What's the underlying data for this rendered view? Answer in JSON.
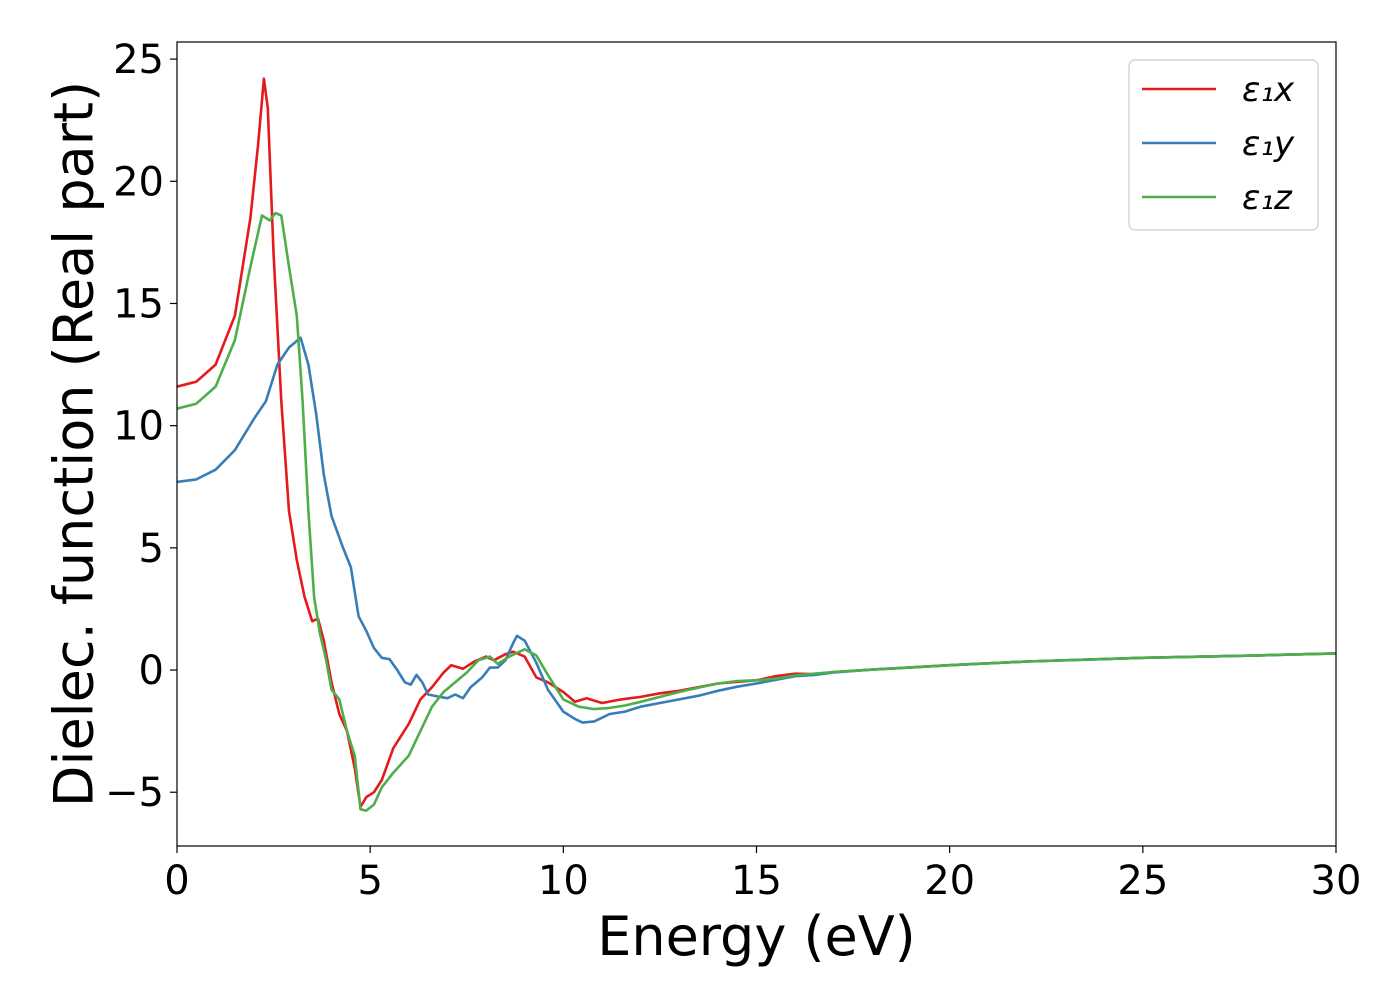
{
  "chart_data": {
    "type": "line",
    "xlabel": "Energy (eV)",
    "ylabel": "Dielec. function (Real part)",
    "xlim": [
      0,
      30
    ],
    "ylim": [
      -7.2,
      25.7
    ],
    "xticks": [
      0,
      5,
      10,
      15,
      20,
      25,
      30
    ],
    "xtick_labels": [
      "0",
      "5",
      "10",
      "15",
      "20",
      "25",
      "30"
    ],
    "yticks": [
      -5,
      0,
      5,
      10,
      15,
      20,
      25
    ],
    "ytick_labels": [
      "−5",
      "0",
      "5",
      "10",
      "15",
      "20",
      "25"
    ],
    "grid": false,
    "legend_position": "top-right",
    "series": [
      {
        "name": "ε₁x",
        "color": "#e41a1c",
        "points": [
          [
            0,
            11.6
          ],
          [
            0.5,
            11.8
          ],
          [
            1.0,
            12.5
          ],
          [
            1.5,
            14.5
          ],
          [
            1.9,
            18.5
          ],
          [
            2.1,
            21.5
          ],
          [
            2.25,
            24.2
          ],
          [
            2.35,
            23.0
          ],
          [
            2.5,
            17.0
          ],
          [
            2.7,
            11.0
          ],
          [
            2.9,
            6.5
          ],
          [
            3.1,
            4.5
          ],
          [
            3.3,
            3.0
          ],
          [
            3.5,
            2.0
          ],
          [
            3.65,
            2.1
          ],
          [
            3.8,
            1.2
          ],
          [
            4.0,
            -0.5
          ],
          [
            4.2,
            -1.8
          ],
          [
            4.4,
            -2.5
          ],
          [
            4.6,
            -4.0
          ],
          [
            4.75,
            -5.6
          ],
          [
            4.9,
            -5.2
          ],
          [
            5.1,
            -5.0
          ],
          [
            5.3,
            -4.5
          ],
          [
            5.6,
            -3.2
          ],
          [
            6.0,
            -2.2
          ],
          [
            6.3,
            -1.2
          ],
          [
            6.6,
            -0.7
          ],
          [
            6.9,
            -0.1
          ],
          [
            7.1,
            0.2
          ],
          [
            7.4,
            0.05
          ],
          [
            7.7,
            0.35
          ],
          [
            8.0,
            0.55
          ],
          [
            8.2,
            0.4
          ],
          [
            8.5,
            0.65
          ],
          [
            8.7,
            0.75
          ],
          [
            9.0,
            0.55
          ],
          [
            9.3,
            -0.3
          ],
          [
            9.6,
            -0.5
          ],
          [
            10.0,
            -0.9
          ],
          [
            10.3,
            -1.3
          ],
          [
            10.6,
            -1.15
          ],
          [
            11.0,
            -1.35
          ],
          [
            11.5,
            -1.2
          ],
          [
            12.0,
            -1.1
          ],
          [
            12.5,
            -0.95
          ],
          [
            13.0,
            -0.85
          ],
          [
            13.5,
            -0.7
          ],
          [
            14.0,
            -0.55
          ],
          [
            14.5,
            -0.48
          ],
          [
            15.0,
            -0.42
          ],
          [
            15.5,
            -0.25
          ],
          [
            16.0,
            -0.15
          ],
          [
            16.5,
            -0.17
          ],
          [
            17.0,
            -0.08
          ],
          [
            18.0,
            0.02
          ],
          [
            20.0,
            0.2
          ],
          [
            22.0,
            0.35
          ],
          [
            25.0,
            0.5
          ],
          [
            28.0,
            0.6
          ],
          [
            30.0,
            0.68
          ]
        ]
      },
      {
        "name": "ε₁y",
        "color": "#377eb8",
        "points": [
          [
            0,
            7.7
          ],
          [
            0.5,
            7.8
          ],
          [
            1.0,
            8.2
          ],
          [
            1.5,
            9.0
          ],
          [
            2.0,
            10.3
          ],
          [
            2.3,
            11.0
          ],
          [
            2.6,
            12.5
          ],
          [
            2.9,
            13.2
          ],
          [
            3.2,
            13.6
          ],
          [
            3.4,
            12.5
          ],
          [
            3.6,
            10.5
          ],
          [
            3.8,
            8.0
          ],
          [
            4.0,
            6.3
          ],
          [
            4.3,
            5.0
          ],
          [
            4.5,
            4.2
          ],
          [
            4.7,
            2.2
          ],
          [
            4.9,
            1.6
          ],
          [
            5.1,
            0.9
          ],
          [
            5.3,
            0.5
          ],
          [
            5.5,
            0.45
          ],
          [
            5.7,
            0.0
          ],
          [
            5.9,
            -0.5
          ],
          [
            6.05,
            -0.6
          ],
          [
            6.2,
            -0.2
          ],
          [
            6.35,
            -0.5
          ],
          [
            6.5,
            -1.0
          ],
          [
            6.8,
            -1.1
          ],
          [
            7.0,
            -1.15
          ],
          [
            7.2,
            -1.0
          ],
          [
            7.4,
            -1.15
          ],
          [
            7.6,
            -0.7
          ],
          [
            7.9,
            -0.3
          ],
          [
            8.1,
            0.1
          ],
          [
            8.3,
            0.1
          ],
          [
            8.5,
            0.4
          ],
          [
            8.7,
            1.1
          ],
          [
            8.8,
            1.4
          ],
          [
            9.0,
            1.2
          ],
          [
            9.3,
            0.3
          ],
          [
            9.6,
            -0.8
          ],
          [
            10.0,
            -1.7
          ],
          [
            10.3,
            -2.0
          ],
          [
            10.5,
            -2.15
          ],
          [
            10.8,
            -2.1
          ],
          [
            11.2,
            -1.8
          ],
          [
            11.6,
            -1.7
          ],
          [
            12.0,
            -1.5
          ],
          [
            12.5,
            -1.35
          ],
          [
            13.0,
            -1.2
          ],
          [
            13.5,
            -1.05
          ],
          [
            14.0,
            -0.85
          ],
          [
            14.5,
            -0.68
          ],
          [
            15.0,
            -0.55
          ],
          [
            15.5,
            -0.4
          ],
          [
            16.0,
            -0.25
          ],
          [
            16.5,
            -0.2
          ],
          [
            17.0,
            -0.1
          ],
          [
            18.0,
            0.02
          ],
          [
            20.0,
            0.2
          ],
          [
            22.0,
            0.35
          ],
          [
            25.0,
            0.5
          ],
          [
            28.0,
            0.6
          ],
          [
            30.0,
            0.68
          ]
        ]
      },
      {
        "name": "ε₁z",
        "color": "#4daf4a",
        "points": [
          [
            0,
            10.7
          ],
          [
            0.5,
            10.9
          ],
          [
            1.0,
            11.6
          ],
          [
            1.5,
            13.5
          ],
          [
            1.9,
            16.5
          ],
          [
            2.2,
            18.6
          ],
          [
            2.4,
            18.4
          ],
          [
            2.55,
            18.7
          ],
          [
            2.7,
            18.6
          ],
          [
            2.9,
            16.5
          ],
          [
            3.1,
            14.5
          ],
          [
            3.25,
            11.0
          ],
          [
            3.4,
            6.5
          ],
          [
            3.55,
            3.0
          ],
          [
            3.7,
            1.5
          ],
          [
            3.85,
            0.5
          ],
          [
            4.0,
            -0.8
          ],
          [
            4.2,
            -1.2
          ],
          [
            4.4,
            -2.5
          ],
          [
            4.6,
            -3.5
          ],
          [
            4.75,
            -5.7
          ],
          [
            4.9,
            -5.75
          ],
          [
            5.1,
            -5.5
          ],
          [
            5.3,
            -4.8
          ],
          [
            5.6,
            -4.2
          ],
          [
            6.0,
            -3.5
          ],
          [
            6.3,
            -2.5
          ],
          [
            6.6,
            -1.5
          ],
          [
            6.9,
            -0.9
          ],
          [
            7.2,
            -0.5
          ],
          [
            7.5,
            -0.1
          ],
          [
            7.8,
            0.4
          ],
          [
            8.1,
            0.55
          ],
          [
            8.3,
            0.25
          ],
          [
            8.6,
            0.55
          ],
          [
            9.0,
            0.85
          ],
          [
            9.3,
            0.6
          ],
          [
            9.6,
            -0.2
          ],
          [
            10.0,
            -1.2
          ],
          [
            10.4,
            -1.5
          ],
          [
            10.8,
            -1.6
          ],
          [
            11.2,
            -1.55
          ],
          [
            11.6,
            -1.45
          ],
          [
            12.0,
            -1.3
          ],
          [
            12.5,
            -1.1
          ],
          [
            13.0,
            -0.9
          ],
          [
            13.5,
            -0.72
          ],
          [
            14.0,
            -0.55
          ],
          [
            14.5,
            -0.45
          ],
          [
            15.0,
            -0.42
          ],
          [
            15.5,
            -0.35
          ],
          [
            16.0,
            -0.22
          ],
          [
            16.5,
            -0.15
          ],
          [
            17.0,
            -0.08
          ],
          [
            18.0,
            0.02
          ],
          [
            20.0,
            0.2
          ],
          [
            22.0,
            0.35
          ],
          [
            25.0,
            0.5
          ],
          [
            28.0,
            0.6
          ],
          [
            30.0,
            0.68
          ]
        ]
      }
    ]
  }
}
